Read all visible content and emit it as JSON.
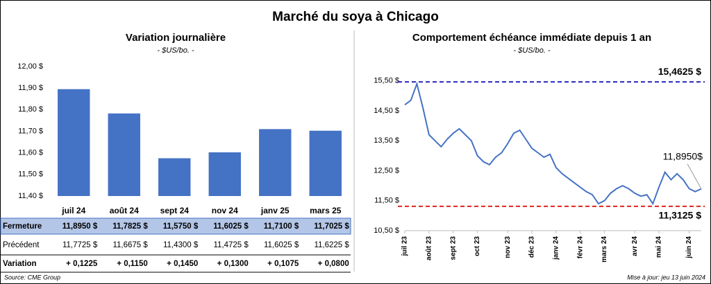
{
  "title": "Marché du soya à Chicago",
  "chart_data": [
    {
      "type": "bar",
      "title": "Variation journalière",
      "subtitle": "- $US/bo. -",
      "categories": [
        "juil 24",
        "août 24",
        "sept 24",
        "nov 24",
        "janv 25",
        "mars 25"
      ],
      "values": [
        11.895,
        11.7825,
        11.575,
        11.6025,
        11.71,
        11.7025
      ],
      "color": "#4472c4",
      "ylim": [
        11.4,
        12.0
      ],
      "yticks": [
        {
          "value": 11.4,
          "label": "11,40 $"
        },
        {
          "value": 11.5,
          "label": "11,50 $"
        },
        {
          "value": 11.6,
          "label": "11,60 $"
        },
        {
          "value": 11.7,
          "label": "11,70 $"
        },
        {
          "value": 11.8,
          "label": "11,80 $"
        },
        {
          "value": 11.9,
          "label": "11,90 $"
        },
        {
          "value": 12.0,
          "label": "12,00 $"
        }
      ],
      "grid": false
    },
    {
      "type": "line",
      "title": "Comportement échéance immédiate depuis 1 an",
      "subtitle": "- $US/bo. -",
      "categories": [
        "juil 23",
        null,
        null,
        null,
        "août 23",
        null,
        null,
        null,
        "sept 23",
        null,
        null,
        null,
        "oct 23",
        null,
        null,
        null,
        null,
        "nov 23",
        null,
        null,
        null,
        "déc 23",
        null,
        null,
        null,
        "janv 24",
        null,
        null,
        null,
        "févr 24",
        null,
        null,
        null,
        "mars 24",
        null,
        null,
        null,
        null,
        "avr 24",
        null,
        null,
        null,
        "mai 24",
        null,
        null,
        null,
        null,
        "juin 24",
        null,
        null
      ],
      "series": [
        {
          "name": "Soya",
          "color": "#4472c4",
          "values": [
            14.7,
            14.85,
            15.4,
            14.6,
            13.7,
            13.5,
            13.3,
            13.55,
            13.75,
            13.9,
            13.7,
            13.5,
            13.0,
            12.8,
            12.7,
            12.95,
            13.1,
            13.4,
            13.75,
            13.85,
            13.55,
            13.25,
            13.1,
            12.95,
            13.05,
            12.6,
            12.4,
            12.25,
            12.1,
            11.95,
            11.8,
            11.7,
            11.4,
            11.5,
            11.75,
            11.9,
            12.0,
            11.9,
            11.75,
            11.65,
            11.7,
            11.4,
            11.95,
            12.45,
            12.2,
            12.4,
            12.2,
            11.9,
            11.8,
            11.895
          ]
        }
      ],
      "ylim": [
        10.5,
        16.0
      ],
      "yticks": [
        {
          "value": 10.5,
          "label": "10,50 $"
        },
        {
          "value": 11.5,
          "label": "11,50 $"
        },
        {
          "value": 12.5,
          "label": "12,50 $"
        },
        {
          "value": 13.5,
          "label": "13,50 $"
        },
        {
          "value": 14.5,
          "label": "14,50 $"
        },
        {
          "value": 15.5,
          "label": "15,50 $"
        }
      ],
      "reference_lines": [
        {
          "value": 15.4625,
          "label": "15,4625 $",
          "color": "#2222bb"
        },
        {
          "value": 11.3125,
          "label": "11,3125 $",
          "color": "#e02020"
        }
      ],
      "annotation": {
        "text": "11,8950$"
      },
      "grid": false
    }
  ],
  "table": {
    "rows": [
      {
        "label": "Fermeture",
        "cells": [
          "11,8950 $",
          "11,7825 $",
          "11,5750 $",
          "11,6025 $",
          "11,7100 $",
          "11,7025 $"
        ]
      },
      {
        "label": "Précédent",
        "cells": [
          "11,7725 $",
          "11,6675 $",
          "11,4300 $",
          "11,4725 $",
          "11,6025 $",
          "11,6225 $"
        ]
      },
      {
        "label": "Variation",
        "cells": [
          "+ 0,1225",
          "+ 0,1150",
          "+ 0,1450",
          "+ 0,1300",
          "+ 0,1075",
          "+ 0,0800"
        ]
      }
    ]
  },
  "footer": {
    "source": "Source: CME Group",
    "updated": "Mise à jour: jeu 13 juin 2024"
  }
}
